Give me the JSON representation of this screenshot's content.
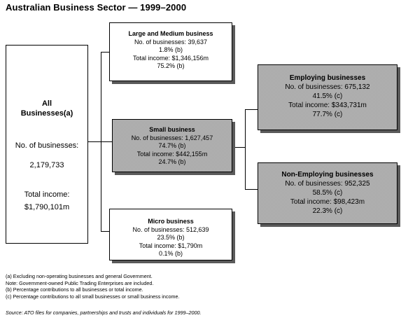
{
  "title": "Australian Business Sector — 1999–2000",
  "all_businesses": {
    "heading": "All Businesses(a)",
    "count_label": "No. of businesses:",
    "count": "2,179,733",
    "income_label": "Total income:",
    "income": "$1,790,101m"
  },
  "large_medium": {
    "heading": "Large and Medium business",
    "count": "No. of businesses: 39,637",
    "count_pct": "1.8% (b)",
    "income": "Total income: $1,346,156m",
    "income_pct": "75.2% (b)"
  },
  "small": {
    "heading": "Small business",
    "count": "No. of businesses: 1,627,457",
    "count_pct": "74.7% (b)",
    "income": "Total income: $442,155m",
    "income_pct": "24.7% (b)"
  },
  "micro": {
    "heading": "Micro business",
    "count": "No. of businesses: 512,639",
    "count_pct": "23.5% (b)",
    "income": "Total income: $1,790m",
    "income_pct": "0.1% (b)"
  },
  "employing": {
    "heading": "Employing businesses",
    "count": "No. of businesses:  675,132",
    "count_pct": "41.5% (c)",
    "income": "Total income: $343,731m",
    "income_pct": "77.7% (c)"
  },
  "non_employing": {
    "heading": "Non-Employing businesses",
    "count": "No. of businesses: 952,325",
    "count_pct": "58.5% (c)",
    "income": "Total income: $98,423m",
    "income_pct": "22.3% (c)"
  },
  "footnotes": [
    "(a) Excluding non-operating businesses and general Government.",
    "Note: Government-owned Public Trading Enterprises are included.",
    "(b) Percentage contributions to all businesses or total income.",
    "(c)  Percentage contributions to all small businesses or small business income."
  ],
  "source": "Source: ATO files for companies, partnerships and trusts and individuals for 1999–2000."
}
